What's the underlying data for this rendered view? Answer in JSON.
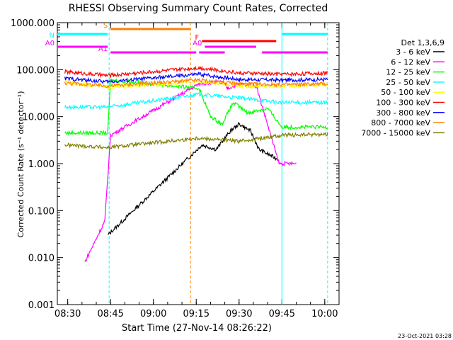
{
  "chart_data": {
    "type": "line",
    "title": "RHESSI Observing Summary Count Rates, Corrected",
    "xlabel": "Start Time (27-Nov-14 08:26:22)",
    "ylabel": "Corrected Count Rate (s⁻¹ detector⁻¹)",
    "y_scale": "log",
    "ylim": [
      0.001,
      1000
    ],
    "xlim": [
      "08:26:22",
      "10:05"
    ],
    "x_ticks": [
      "08:30",
      "08:45",
      "09:00",
      "09:15",
      "09:30",
      "09:45",
      "10:00"
    ],
    "y_ticks": [
      "1000.000",
      "100.000",
      "10.000",
      "1.000",
      "0.100",
      "0.010",
      "0.001"
    ],
    "legend_title": "Det 1,3,6,9",
    "legend_position": "right",
    "grid": false,
    "footer_date": "23-Oct-2021 03:28",
    "series": [
      {
        "name": "3 - 6 keV",
        "color": "#000000",
        "values": [
          [
            "08:30",
            null
          ],
          [
            "08:44",
            0.03
          ],
          [
            "09:17",
            2.5
          ],
          [
            "09:22",
            2.0
          ],
          [
            "09:27",
            5.0
          ],
          [
            "09:30",
            7.0
          ],
          [
            "09:34",
            5.0
          ],
          [
            "09:37",
            2.0
          ],
          [
            "09:44",
            1.2
          ]
        ]
      },
      {
        "name": "6 - 12 keV",
        "color": "#ff00ff",
        "values": [
          [
            "08:36",
            0.008
          ],
          [
            "08:43",
            0.06
          ],
          [
            "08:45",
            4.0
          ],
          [
            "09:16",
            50.0
          ],
          [
            "09:24",
            55.0
          ],
          [
            "09:26",
            40.0
          ],
          [
            "09:30",
            50.0
          ],
          [
            "09:36",
            45.0
          ],
          [
            "09:44",
            1.0
          ],
          [
            "09:50",
            1.0
          ]
        ]
      },
      {
        "name": "12 - 25 keV",
        "color": "#00ff00",
        "values": [
          [
            "08:29",
            4.5
          ],
          [
            "08:44",
            4.5
          ],
          [
            "08:45",
            60.0
          ],
          [
            "09:16",
            40.0
          ],
          [
            "09:20",
            10.0
          ],
          [
            "09:24",
            7.0
          ],
          [
            "09:28",
            20.0
          ],
          [
            "09:33",
            12.0
          ],
          [
            "09:40",
            15.0
          ],
          [
            "09:45",
            6.0
          ],
          [
            "10:01",
            6.0
          ]
        ]
      },
      {
        "name": "25 - 50 keV",
        "color": "#00ffff",
        "values": [
          [
            "08:29",
            16.0
          ],
          [
            "08:44",
            16.0
          ],
          [
            "09:16",
            30.0
          ],
          [
            "09:30",
            25.0
          ],
          [
            "09:45",
            20.0
          ],
          [
            "10:01",
            20.0
          ]
        ]
      },
      {
        "name": "50 - 100 keV",
        "color": "#ffff00",
        "values": [
          [
            "08:29",
            55.0
          ],
          [
            "08:44",
            42.0
          ],
          [
            "09:16",
            55.0
          ],
          [
            "09:30",
            45.0
          ],
          [
            "09:45",
            45.0
          ],
          [
            "10:01",
            48.0
          ]
        ]
      },
      {
        "name": "100 - 300 keV",
        "color": "#ff0000",
        "values": [
          [
            "08:29",
            90.0
          ],
          [
            "08:44",
            75.0
          ],
          [
            "09:16",
            110.0
          ],
          [
            "09:30",
            85.0
          ],
          [
            "09:45",
            80.0
          ],
          [
            "10:01",
            85.0
          ]
        ]
      },
      {
        "name": "300 - 800 keV",
        "color": "#0000ff",
        "values": [
          [
            "08:29",
            65.0
          ],
          [
            "08:44",
            55.0
          ],
          [
            "09:16",
            80.0
          ],
          [
            "09:30",
            62.0
          ],
          [
            "09:45",
            60.0
          ],
          [
            "10:01",
            62.0
          ]
        ]
      },
      {
        "name": "800 - 7000 keV",
        "color": "#ff8000",
        "values": [
          [
            "08:29",
            52.0
          ],
          [
            "08:44",
            45.0
          ],
          [
            "09:16",
            60.0
          ],
          [
            "09:30",
            50.0
          ],
          [
            "09:45",
            48.0
          ],
          [
            "10:01",
            50.0
          ]
        ]
      },
      {
        "name": "7000 - 15000 keV",
        "color": "#808000",
        "values": [
          [
            "08:29",
            2.5
          ],
          [
            "08:44",
            2.2
          ],
          [
            "09:16",
            3.5
          ],
          [
            "09:30",
            3.0
          ],
          [
            "09:45",
            4.0
          ],
          [
            "10:01",
            4.2
          ]
        ]
      }
    ],
    "flag_bars": [
      {
        "label": "S",
        "color": "#ff8000",
        "start": "08:45",
        "end": "09:13"
      },
      {
        "label": "N",
        "color": "#00ffff",
        "start": "08:26:22",
        "end": "08:44"
      },
      {
        "label": "N",
        "color": "#00ffff",
        "start": "09:45",
        "end": "10:01"
      },
      {
        "label": "F",
        "color": "#ff0000",
        "start": "09:17",
        "end": "09:43"
      },
      {
        "label": "A0",
        "color": "#ff00ff",
        "start": "08:26:22",
        "end": "08:44"
      },
      {
        "label": "A0",
        "color": "#ff00ff",
        "start": "09:18",
        "end": "09:36"
      },
      {
        "label": "A1",
        "color": "#ff00ff",
        "start": "08:45",
        "end": "09:15"
      },
      {
        "label": "A1",
        "color": "#ff00ff",
        "start": "09:16",
        "end": "09:25"
      },
      {
        "label": "A1",
        "color": "#ff00ff",
        "start": "09:38",
        "end": "10:01"
      }
    ],
    "vertical_markers": [
      {
        "time": "08:44.5",
        "color": "#00ffff",
        "style": "dashed-orange"
      },
      {
        "time": "09:13",
        "color": "#ff8000",
        "style": "dashed"
      },
      {
        "time": "09:45",
        "color": "#00ffff",
        "style": "solid"
      },
      {
        "time": "10:01",
        "color": "#00ffff",
        "style": "dashed"
      }
    ]
  }
}
